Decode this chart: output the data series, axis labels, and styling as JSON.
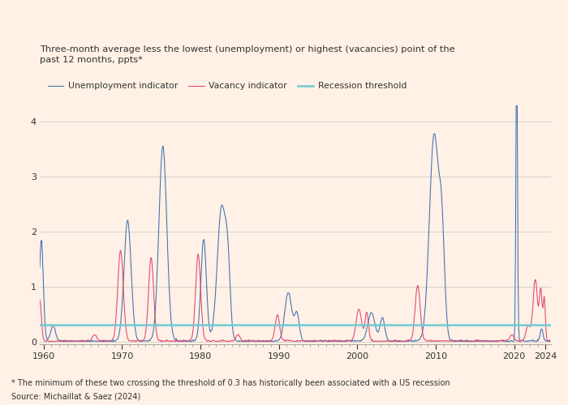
{
  "title_line1": "Three-month average less the lowest (unemployment) or highest (vacancies) point of the",
  "title_line2": "past 12 months, ppts*",
  "footnote": "* The minimum of these two crossing the threshold of 0.3 has historically been associated with a US recession",
  "source": "Source: Michaillat & Saez (2024)",
  "legend": [
    "Unemployment indicator",
    "Vacancy indicator",
    "Recession threshold"
  ],
  "colors": {
    "unemployment": "#3d6faf",
    "vacancy": "#e0436f",
    "threshold": "#6ecbd4",
    "background": "#fff1e5",
    "plot_bg": "#fff1e5",
    "text": "#333333",
    "grid": "#cccccc",
    "tick": "#999999"
  },
  "threshold": 0.3,
  "ylim": [
    -0.05,
    4.3
  ],
  "xlim": [
    1959.5,
    2024.7
  ],
  "yticks": [
    0,
    1,
    2,
    3,
    4
  ],
  "xticks": [
    1960,
    1970,
    1980,
    1990,
    2000,
    2010,
    2020,
    2024
  ]
}
